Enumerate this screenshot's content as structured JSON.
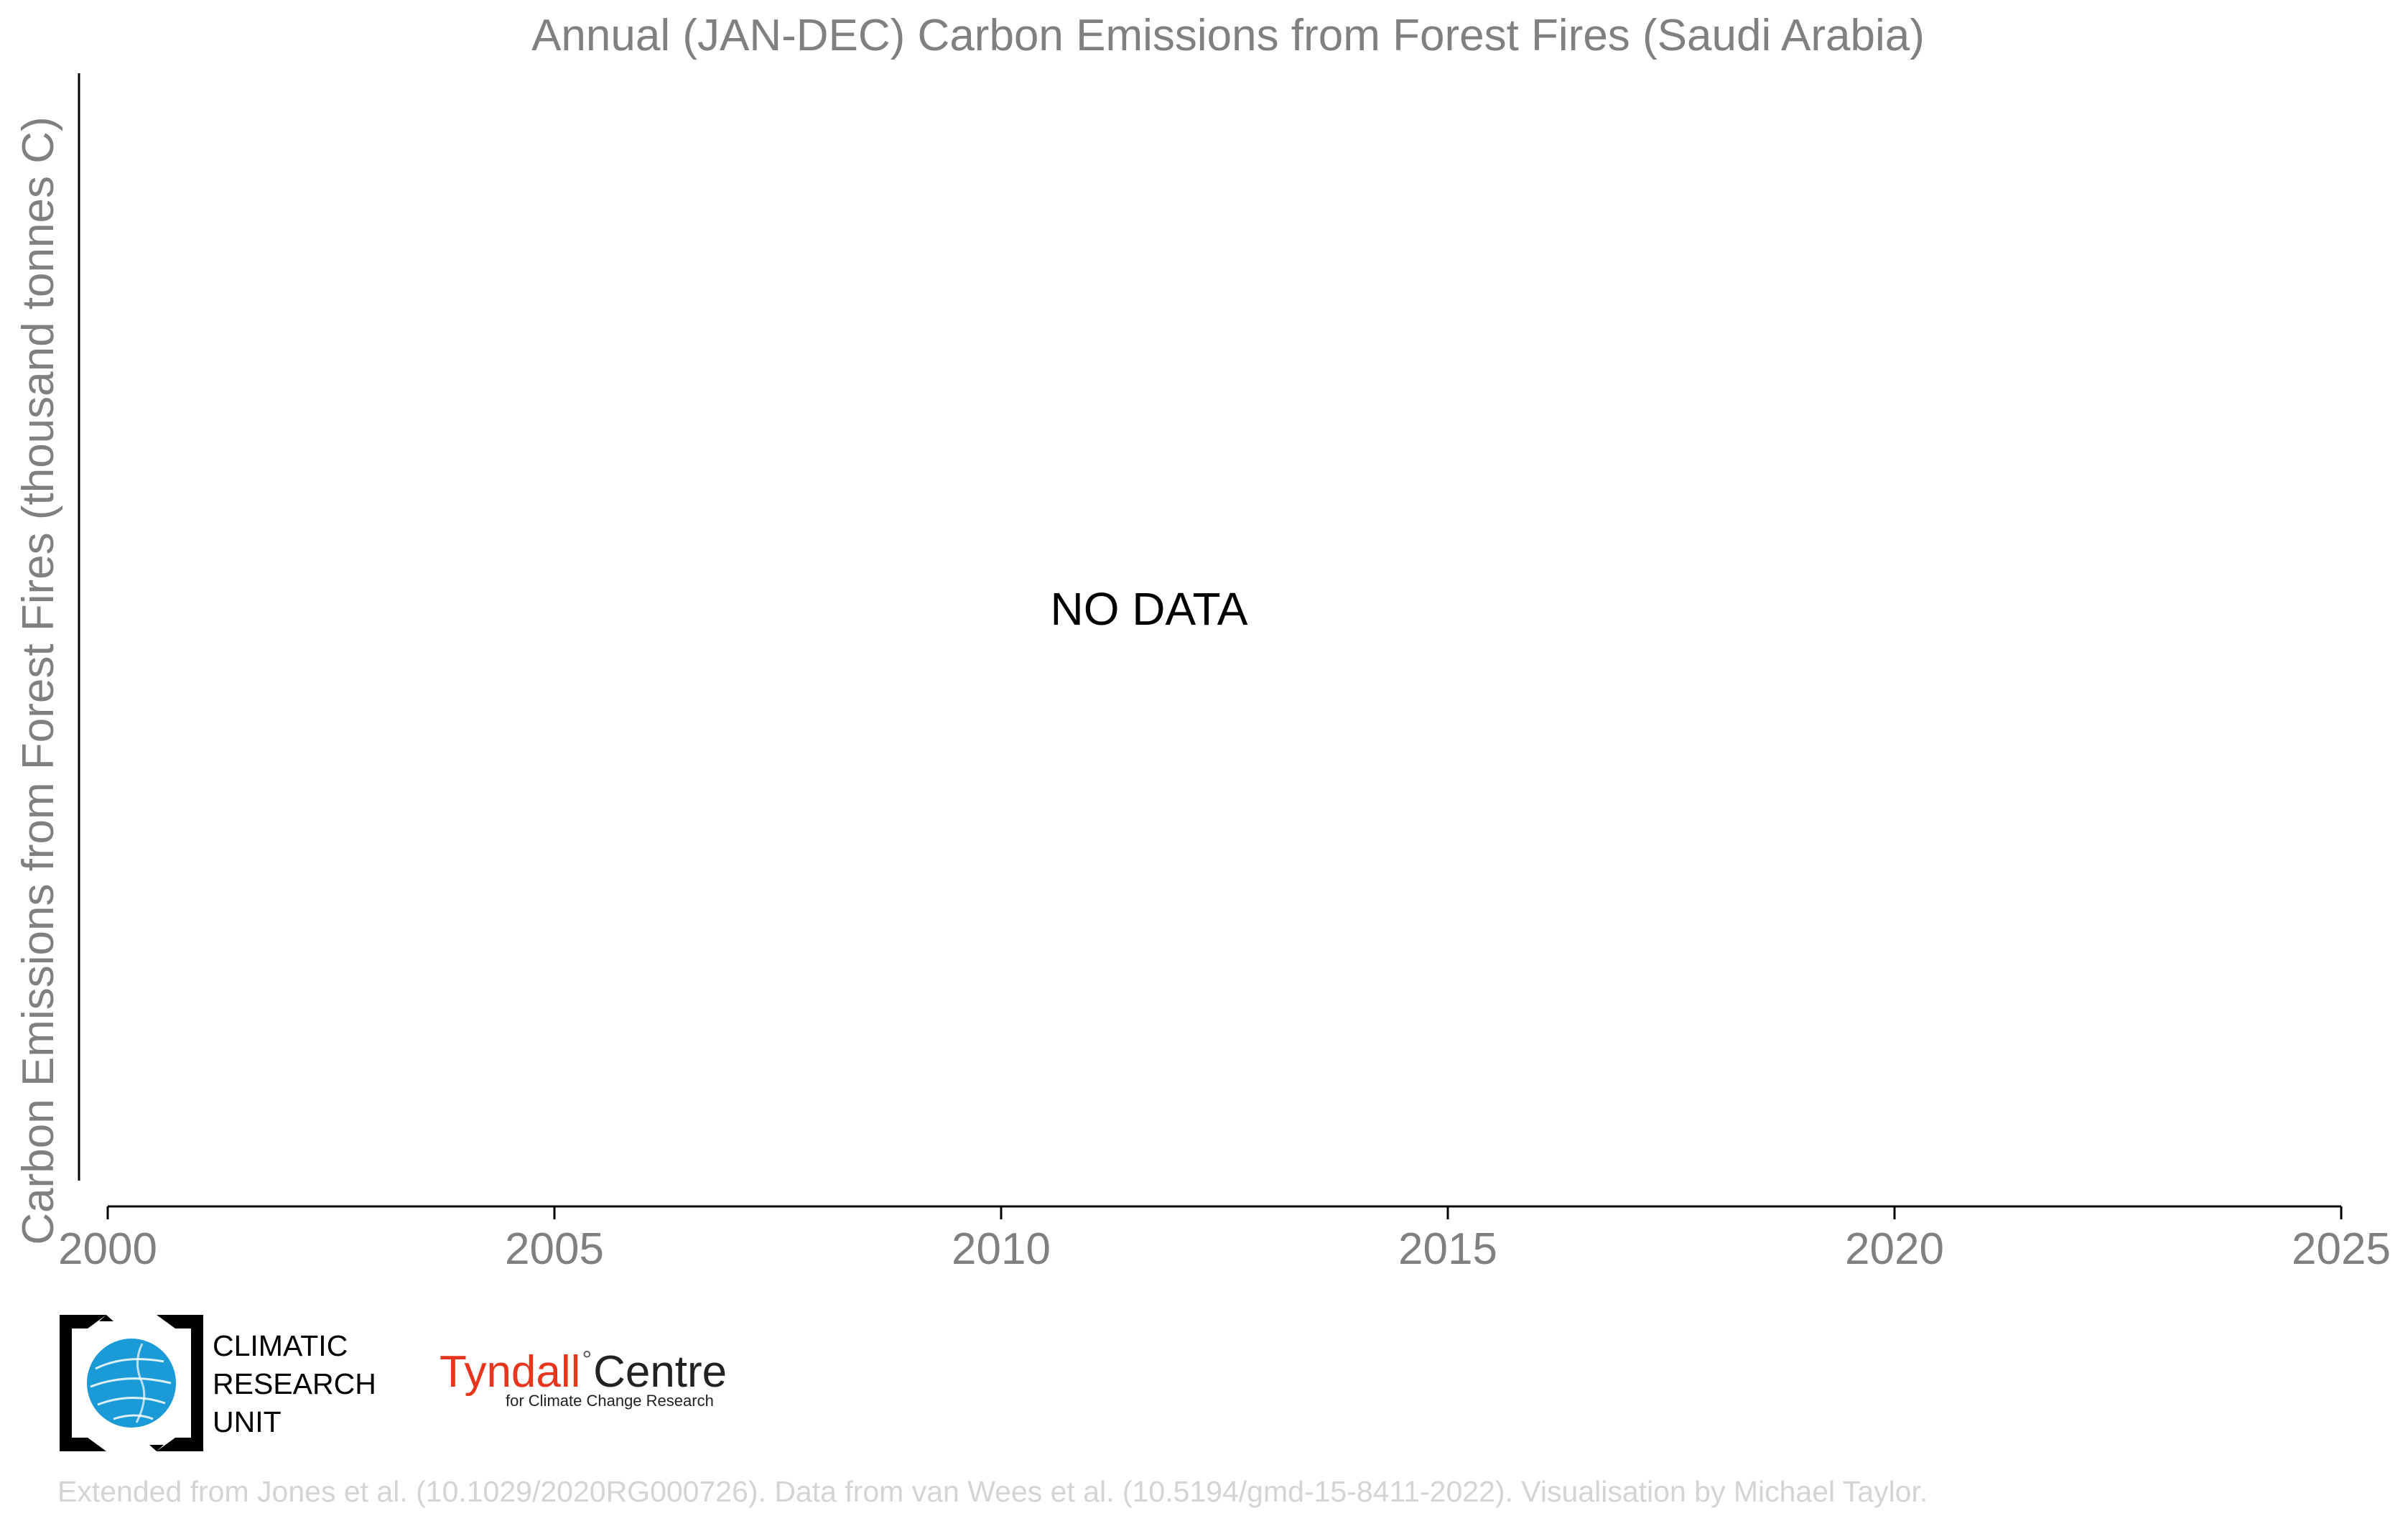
{
  "chart_data": {
    "type": "line",
    "title": "Annual (JAN-DEC) Carbon Emissions from Forest Fires (Saudi Arabia)",
    "xlabel": "",
    "ylabel": "Carbon Emissions from Forest Fires (thousand tonnes C)",
    "xlim": [
      2000,
      2025
    ],
    "x_ticks": [
      2000,
      2005,
      2010,
      2015,
      2020,
      2025
    ],
    "series": [],
    "annotation": "NO DATA",
    "grid": false,
    "legend": "none"
  },
  "logos": {
    "cru": {
      "lines": [
        "CLIMATIC",
        "RESEARCH",
        "UNIT"
      ]
    },
    "tyndall": {
      "name": "Tyndall",
      "degree": "°",
      "centre": "Centre",
      "subtitle": "for Climate Change Research"
    }
  },
  "credits": "Extended from Jones et al. (10.1029/2020RG000726). Data from van Wees et al. (10.5194/gmd-15-8411-2022). Visualisation by Michael Taylor.",
  "colors": {
    "title": "#808080",
    "axis_label": "#808080",
    "tick_label": "#808080",
    "axis_line": "#000000",
    "annotation": "#000000",
    "credits": "#d4d4d4",
    "cru_blue": "#1a9ad6",
    "tyndall_red": "#e8351d"
  }
}
